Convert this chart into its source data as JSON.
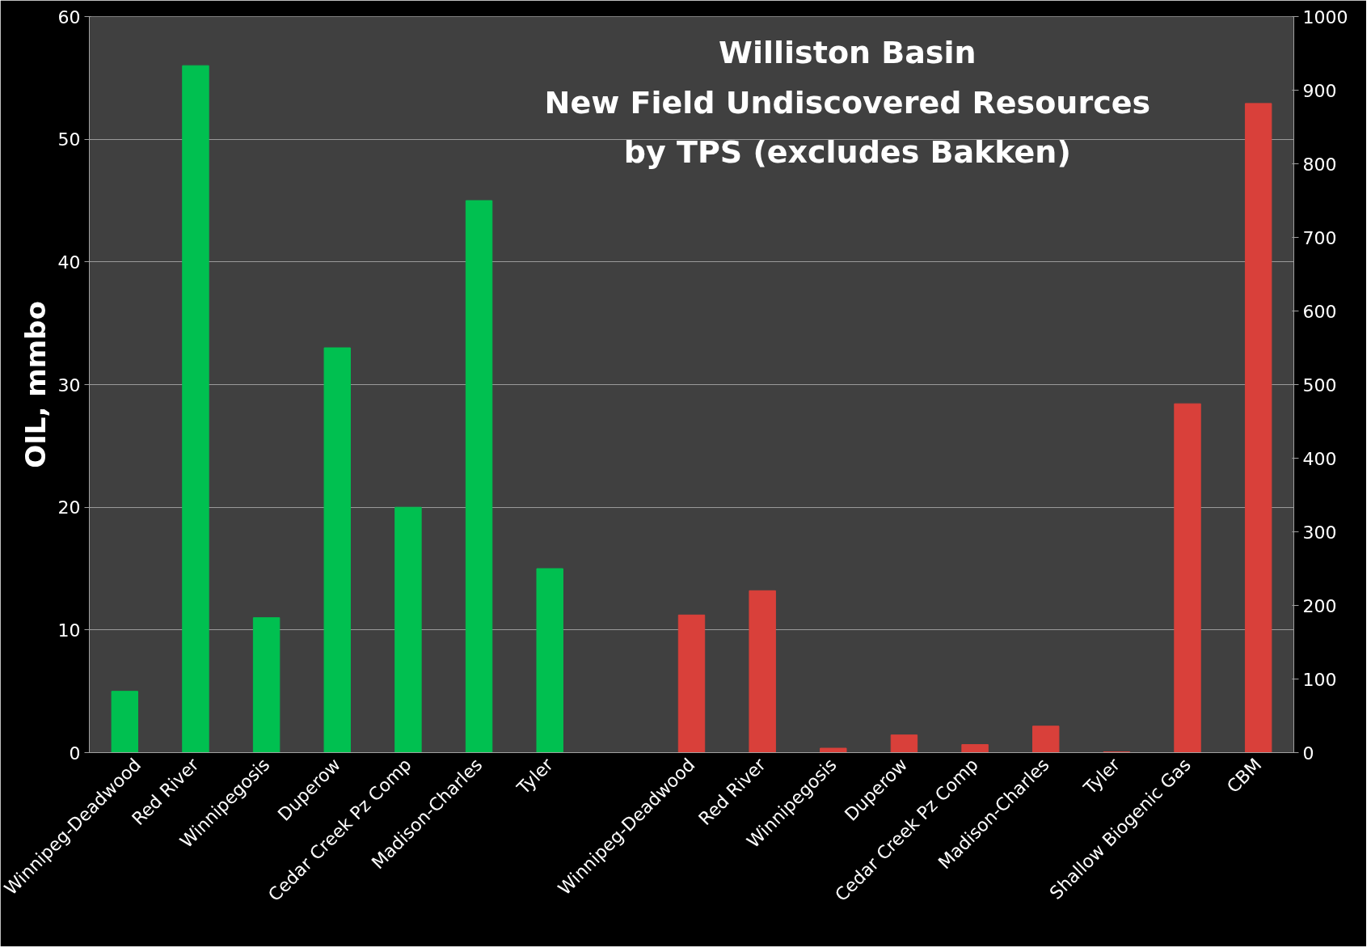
{
  "chart_data": {
    "type": "bar",
    "title": "Williston Basin\nNew Field Undiscovered Resources\nby TPS (excludes Bakken)",
    "ylabel": "OIL, mmbo",
    "categories": [
      "Winnipeg-Deadwood",
      "Red River",
      "Winnipegosis",
      "Duperow",
      "Cedar Creek Pz Comp",
      "Madison-Charles",
      "Tyler",
      null,
      "Winnipeg-Deadwood",
      "Red River",
      "Winnipegosis",
      "Duperow",
      "Cedar Creek Pz Comp",
      "Madison-Charles",
      "Tyler",
      "Shallow Biogenic Gas",
      "CBM"
    ],
    "series": [
      {
        "color": "#00c050",
        "values": [
          5,
          56,
          11,
          33,
          20,
          45,
          15,
          null,
          null,
          null,
          null,
          null,
          null,
          null,
          null,
          null,
          null
        ]
      },
      {
        "color": "#d9403a",
        "axis": "y2",
        "values": [
          null,
          null,
          null,
          null,
          null,
          null,
          null,
          null,
          187,
          220,
          6,
          24,
          11,
          36,
          1,
          474,
          882
        ]
      }
    ],
    "ylim": [
      0,
      60
    ],
    "yticks": [
      0,
      10,
      20,
      30,
      40,
      50,
      60
    ],
    "y2lim": [
      0,
      1000
    ],
    "y2ticks": [
      0,
      100,
      200,
      300,
      400,
      500,
      600,
      700,
      800,
      900,
      1000
    ],
    "grid": "y"
  }
}
